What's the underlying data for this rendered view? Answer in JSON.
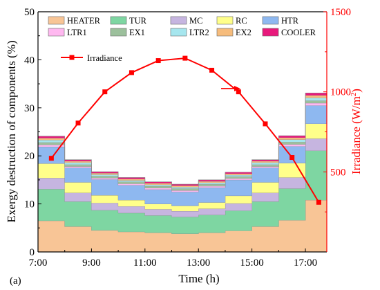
{
  "panel_label": "(a)",
  "chart_data": {
    "type": "area",
    "subtype": "stacked-step",
    "xlabel": "Time (h)",
    "ylabel": "Exergy destruction of components (%)",
    "y2label_main": "Irradiance (W/m",
    "y2label_sup": "2",
    "y2label_close": ")",
    "xlim": [
      7,
      17.8
    ],
    "ylim": [
      0,
      50
    ],
    "y2lim": [
      0,
      1500
    ],
    "x_ticks": [
      7,
      9,
      11,
      13,
      15,
      17
    ],
    "x_tick_labels": [
      "7:00",
      "9:00",
      "11:00",
      "13:00",
      "15:00",
      "17:00"
    ],
    "y_ticks": [
      0,
      10,
      20,
      30,
      40,
      50
    ],
    "y_tick_labels": [
      "0",
      "10",
      "20",
      "30",
      "40",
      "50"
    ],
    "y2_ticks": [
      500,
      1000,
      1500
    ],
    "y2_tick_labels": [
      "500",
      "1000",
      "1500"
    ],
    "x": [
      7.5,
      8.5,
      9.5,
      10.5,
      11.5,
      12.5,
      13.5,
      14.5,
      15.5,
      16.5,
      17.5
    ],
    "step_edges": [
      7.0,
      8.0,
      9.0,
      10.0,
      11.0,
      12.0,
      13.0,
      14.0,
      15.0,
      16.0,
      17.0,
      17.8
    ],
    "series": [
      {
        "name": "HEATER",
        "color": "#f8c596",
        "values": [
          6.5,
          5.3,
          4.5,
          4.2,
          4.0,
          3.8,
          4.0,
          4.4,
          5.3,
          6.6,
          10.8
        ]
      },
      {
        "name": "TUR",
        "color": "#7ed6a2",
        "values": [
          6.6,
          5.2,
          4.2,
          3.9,
          3.6,
          3.5,
          3.7,
          4.2,
          5.2,
          6.6,
          10.3
        ]
      },
      {
        "name": "MC",
        "color": "#c6b5e0",
        "values": [
          2.3,
          1.8,
          1.5,
          1.4,
          1.3,
          1.2,
          1.3,
          1.5,
          1.8,
          2.3,
          2.5
        ]
      },
      {
        "name": "RC",
        "color": "#ffff8a",
        "values": [
          3.0,
          2.2,
          1.6,
          1.3,
          1.1,
          1.1,
          1.3,
          1.6,
          2.2,
          3.0,
          3.1
        ]
      },
      {
        "name": "HTR",
        "color": "#8eb8f0",
        "values": [
          3.5,
          3.0,
          3.3,
          3.1,
          3.0,
          2.9,
          3.1,
          3.3,
          3.0,
          3.5,
          3.8
        ]
      },
      {
        "name": "LTR1",
        "color": "#ffb8f0",
        "values": [
          0.4,
          0.3,
          0.3,
          0.3,
          0.3,
          0.3,
          0.3,
          0.3,
          0.3,
          0.4,
          0.5
        ]
      },
      {
        "name": "EX1",
        "color": "#9cc09c",
        "values": [
          0.5,
          0.4,
          0.4,
          0.4,
          0.4,
          0.4,
          0.4,
          0.4,
          0.4,
          0.5,
          0.5
        ]
      },
      {
        "name": "LTR2",
        "color": "#a6e6ee",
        "values": [
          0.5,
          0.4,
          0.3,
          0.3,
          0.3,
          0.3,
          0.3,
          0.3,
          0.4,
          0.5,
          0.6
        ]
      },
      {
        "name": "EX2",
        "color": "#f6bc7c",
        "values": [
          0.4,
          0.3,
          0.3,
          0.3,
          0.3,
          0.3,
          0.3,
          0.3,
          0.3,
          0.4,
          0.5
        ]
      },
      {
        "name": "COOLER",
        "color": "#e8197c",
        "values": [
          0.4,
          0.3,
          0.3,
          0.3,
          0.3,
          0.3,
          0.3,
          0.3,
          0.3,
          0.4,
          0.5
        ]
      }
    ],
    "line_series": {
      "name": "Irradiance",
      "axis": "right",
      "color": "#ff0000",
      "values": [
        585,
        805,
        1000,
        1120,
        1195,
        1210,
        1135,
        1000,
        800,
        590,
        310
      ]
    },
    "legend_placement": "top",
    "grid": false
  }
}
